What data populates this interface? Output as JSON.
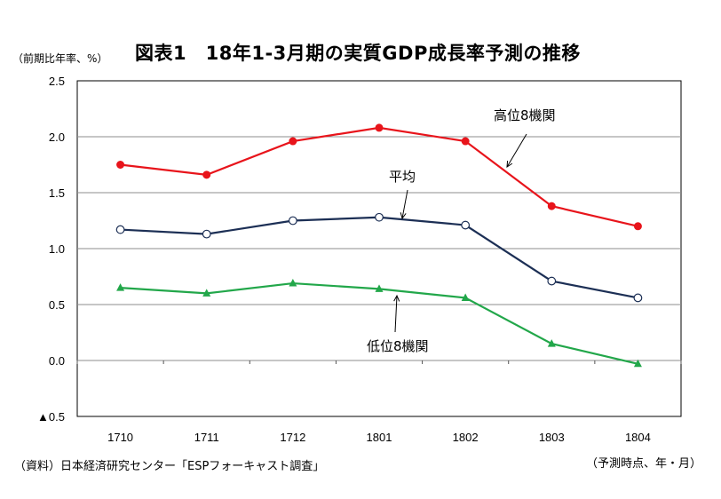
{
  "header": {
    "unit": "（前期比年率、%）",
    "title": "図表1　18年1-3月期の実質GDP成長率予測の推移"
  },
  "footer": {
    "source": "（資料）日本経済研究センター「ESPフォーキャスト調査」",
    "xaxis_note": "（予測時点、年・月）"
  },
  "chart_data": {
    "type": "line",
    "categories": [
      "1710",
      "1711",
      "1712",
      "1801",
      "1802",
      "1803",
      "1804"
    ],
    "ylim": [
      -0.5,
      2.5
    ],
    "yticks": [
      2.5,
      2.0,
      1.5,
      1.0,
      0.5,
      0.0,
      -0.5
    ],
    "ytick_labels": [
      "2.5",
      "2.0",
      "1.5",
      "1.0",
      "0.5",
      "0.0",
      "▲0.5"
    ],
    "grid": true,
    "series": [
      {
        "name": "高位8機関",
        "color": "#e8141b",
        "marker": "circle-filled",
        "values": [
          1.75,
          1.66,
          1.96,
          2.08,
          1.96,
          1.38,
          1.2
        ]
      },
      {
        "name": "平均",
        "color": "#1c2f55",
        "marker": "circle-open",
        "values": [
          1.17,
          1.13,
          1.25,
          1.28,
          1.21,
          0.71,
          0.56
        ]
      },
      {
        "name": "低位8機関",
        "color": "#22a74a",
        "marker": "triangle-filled",
        "values": [
          0.65,
          0.6,
          0.69,
          0.64,
          0.56,
          0.15,
          -0.03
        ]
      }
    ]
  }
}
